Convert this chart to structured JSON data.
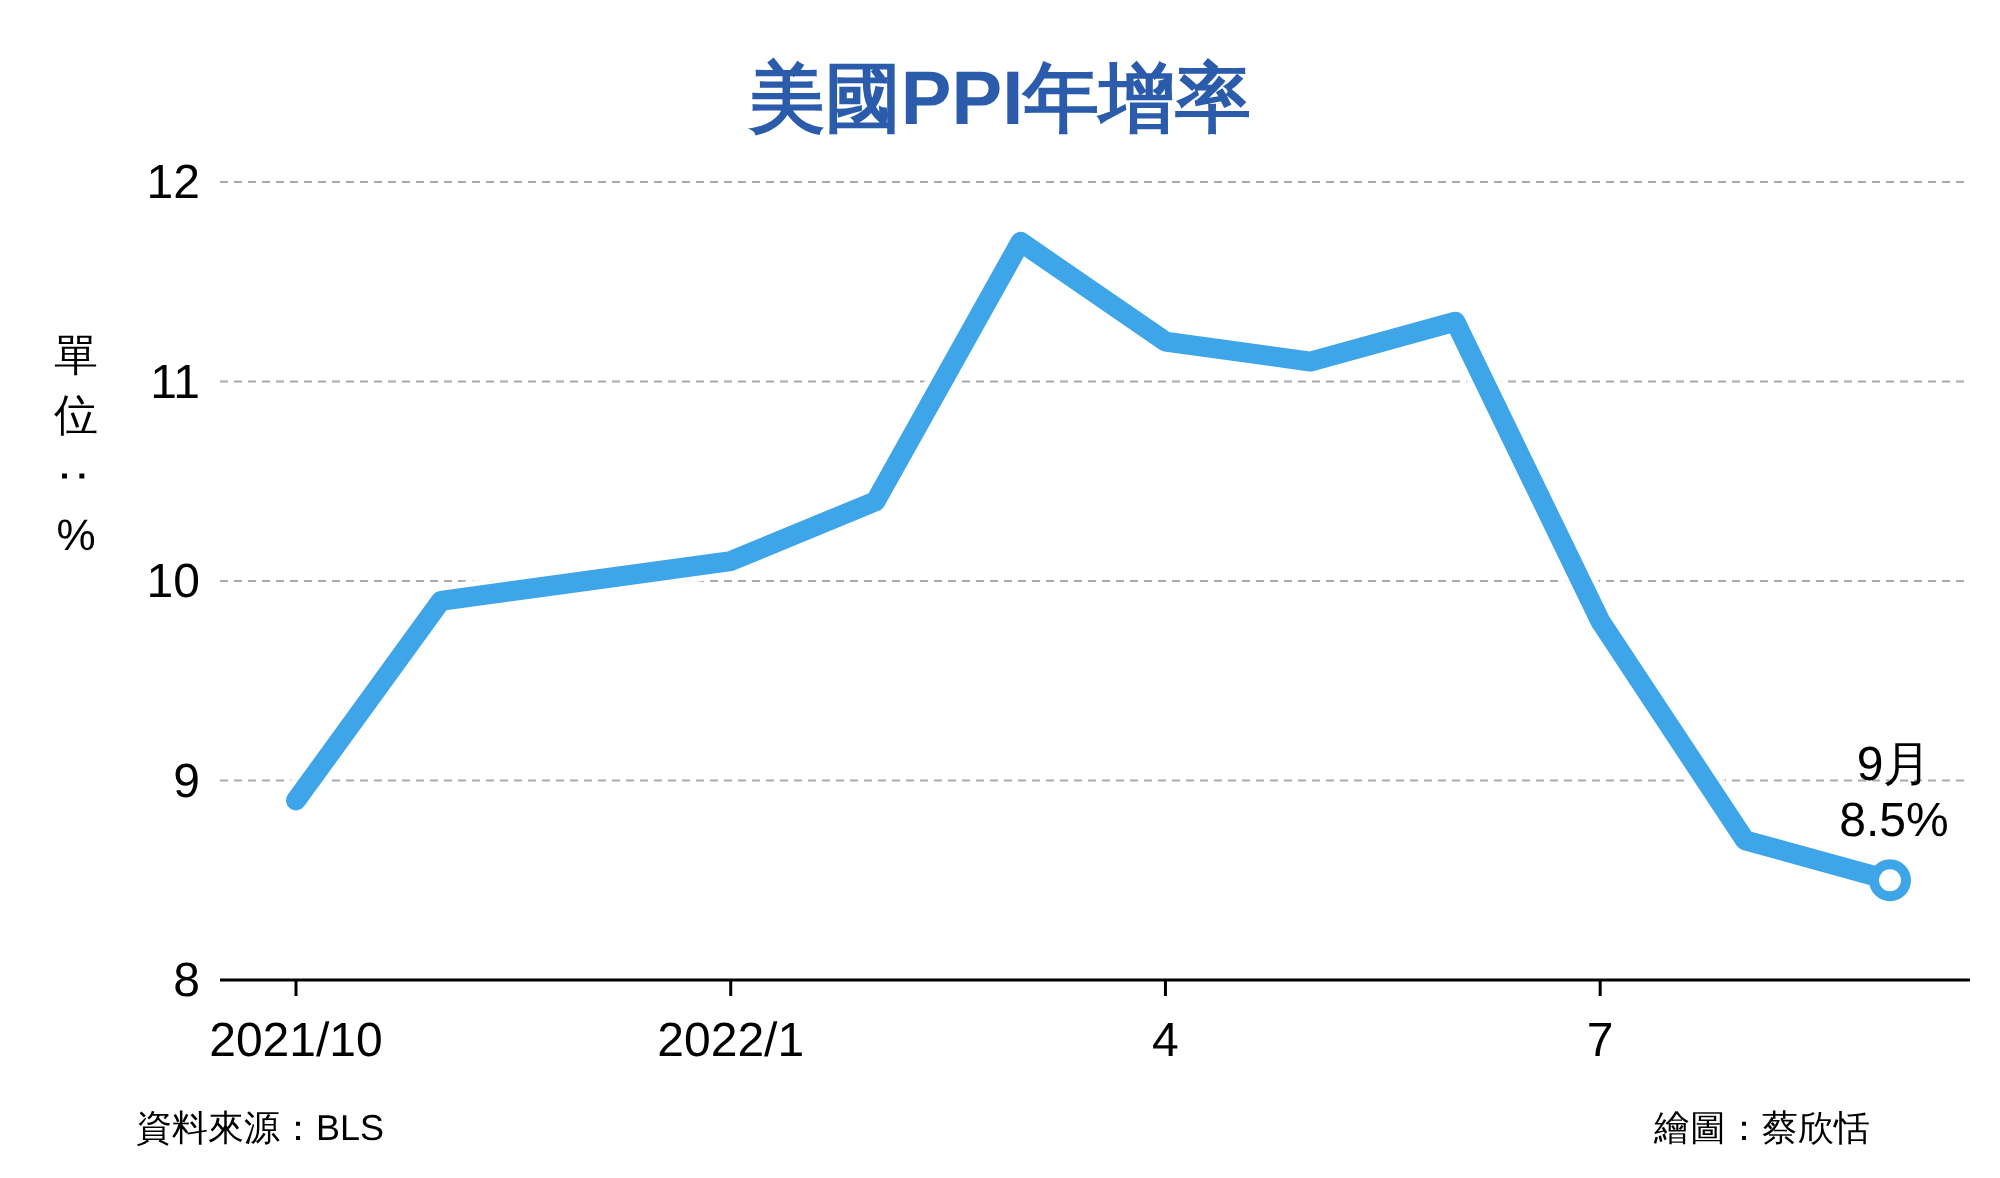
{
  "chart_data": {
    "type": "line",
    "title": "美國PPI年增率",
    "ylabel": "單位：%",
    "categories": [
      "2021/10",
      null,
      null,
      "2022/1",
      null,
      null,
      "4",
      null,
      null,
      "7",
      null,
      null
    ],
    "series": [
      {
        "color": "#3da5e8",
        "values": [
          8.9,
          9.9,
          10.0,
          10.1,
          10.4,
          11.7,
          11.2,
          11.1,
          11.3,
          9.8,
          8.7,
          8.5
        ]
      }
    ],
    "ylim": [
      8,
      12
    ],
    "yticks": [
      8,
      9,
      10,
      11,
      12
    ],
    "grid": "y",
    "marker": "none",
    "line_style": "solid",
    "annotations": [
      {
        "text": "9月\n8.5%",
        "y": 8.5
      },
      "資料來源：BLS",
      "繪圖：蔡欣恬"
    ]
  }
}
